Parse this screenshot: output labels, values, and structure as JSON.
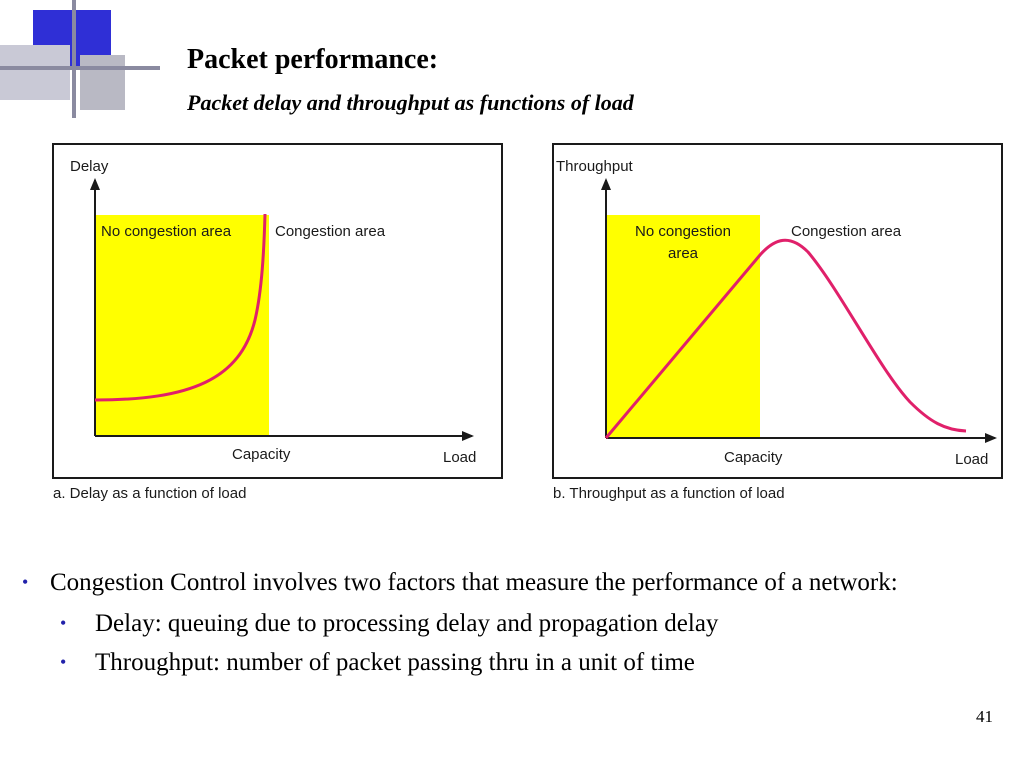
{
  "slide": {
    "title": "Packet performance:",
    "subtitle": "Packet delay and throughput as functions of load",
    "page_number": "41"
  },
  "figure_a": {
    "y_axis_label": "Delay",
    "x_axis_label": "Load",
    "capacity_label": "Capacity",
    "no_congestion_label": "No congestion area",
    "congestion_label": "Congestion area",
    "caption": "a. Delay as a function of load"
  },
  "figure_b": {
    "y_axis_label": "Throughput",
    "x_axis_label": "Load",
    "capacity_label": "Capacity",
    "no_congestion_label_line1": "No congestion",
    "no_congestion_label_line2": "area",
    "congestion_label": "Congestion area",
    "caption": "b. Throughput as a function of load"
  },
  "colors": {
    "no_congestion_fill": "#ffff00",
    "curve": "#e0206a",
    "axes": "#1a1a1a",
    "bullet": "#2222aa",
    "deco_blue": "#2f2fd6",
    "deco_gray": "#b9b9c4"
  },
  "bullets": [
    {
      "text": "Congestion Control involves two factors that measure the performance of a network:",
      "children": [
        {
          "text": "Delay: queuing due to processing delay and propagation delay"
        },
        {
          "text": "Throughput: number of packet passing thru in a unit of time"
        }
      ]
    }
  ]
}
